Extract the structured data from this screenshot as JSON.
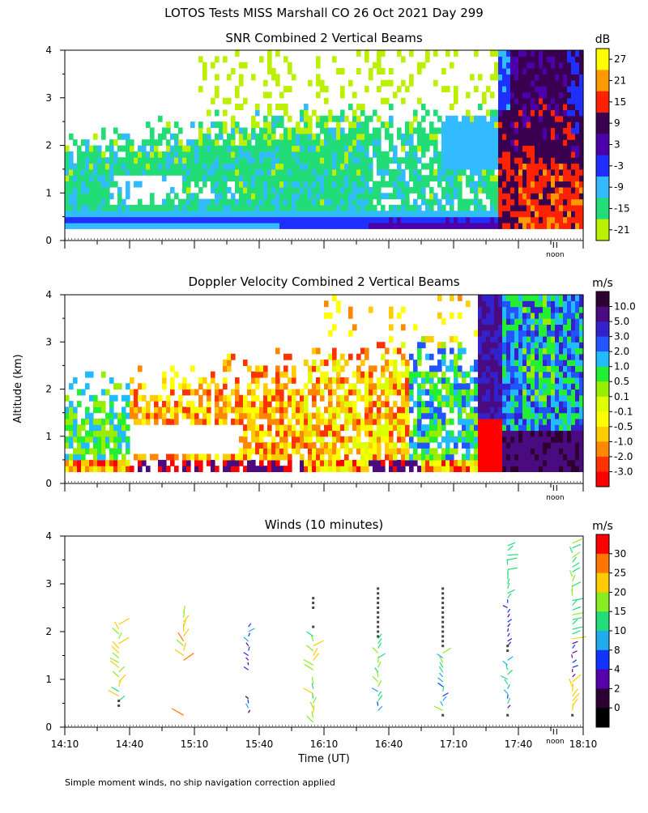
{
  "title": "LOTOS Tests MISS Marshall CO  26 Oct 2021 Day 299",
  "ylabel": "Altitude (km)",
  "xlabel": "Time (UT)",
  "footnote": "Simple moment winds, no ship navigation correction applied",
  "noon_label": "noon",
  "x_ticks": [
    "14:10",
    "14:40",
    "15:10",
    "15:40",
    "16:10",
    "16:40",
    "17:10",
    "17:40",
    "18:10"
  ],
  "y_ticks": [
    "0",
    "1",
    "2",
    "3",
    "4"
  ],
  "chart_data": [
    {
      "type": "heatmap",
      "title": "SNR Combined 2 Vertical Beams",
      "unit": "dB",
      "xlim_minutes_after_1410": [
        0,
        240
      ],
      "ylim_km": [
        0,
        4
      ],
      "colorbar": {
        "labels": [
          "27",
          "21",
          "15",
          "9",
          "3",
          "-3",
          "-9",
          "-15",
          "-21"
        ],
        "colors": [
          "#ffff00",
          "#ff9900",
          "#ff2200",
          "#3a0050",
          "#4b00aa",
          "#1f2fff",
          "#33bbff",
          "#22dd77",
          "#bbf000"
        ]
      }
    },
    {
      "type": "heatmap",
      "title": "Doppler Velocity Combined 2 Vertical Beams",
      "unit": "m/s",
      "xlim_minutes_after_1410": [
        0,
        240
      ],
      "ylim_km": [
        0,
        4
      ],
      "colorbar": {
        "labels": [
          "10.0",
          "5.0",
          "3.0",
          "2.0",
          "1.0",
          "0.5",
          "0.1",
          "-0.1",
          "-0.5",
          "-1.0",
          "-2.0",
          "-3.0"
        ],
        "colors": [
          "#2d0030",
          "#4a0a80",
          "#3322cc",
          "#2255ff",
          "#22bbff",
          "#22ee33",
          "#99ee00",
          "#ddff00",
          "#ffff00",
          "#ffcc00",
          "#ff8800",
          "#ff3300",
          "#ff0000"
        ]
      }
    },
    {
      "type": "scatter",
      "title": "Winds (10 minutes)",
      "unit": "m/s",
      "xlim_minutes_after_1410": [
        0,
        240
      ],
      "ylim_km": [
        0,
        4
      ],
      "profile_times_minutes": [
        25,
        55,
        85,
        115,
        145,
        175,
        205,
        235
      ],
      "colorbar": {
        "labels": [
          "30",
          "25",
          "20",
          "15",
          "10",
          "8",
          "4",
          "2",
          "0"
        ],
        "colors": [
          "#ff0000",
          "#ff7700",
          "#ffcc00",
          "#88ee22",
          "#22dd77",
          "#22aaee",
          "#1133ff",
          "#5500aa",
          "#2d0033",
          "#000000"
        ]
      }
    }
  ]
}
